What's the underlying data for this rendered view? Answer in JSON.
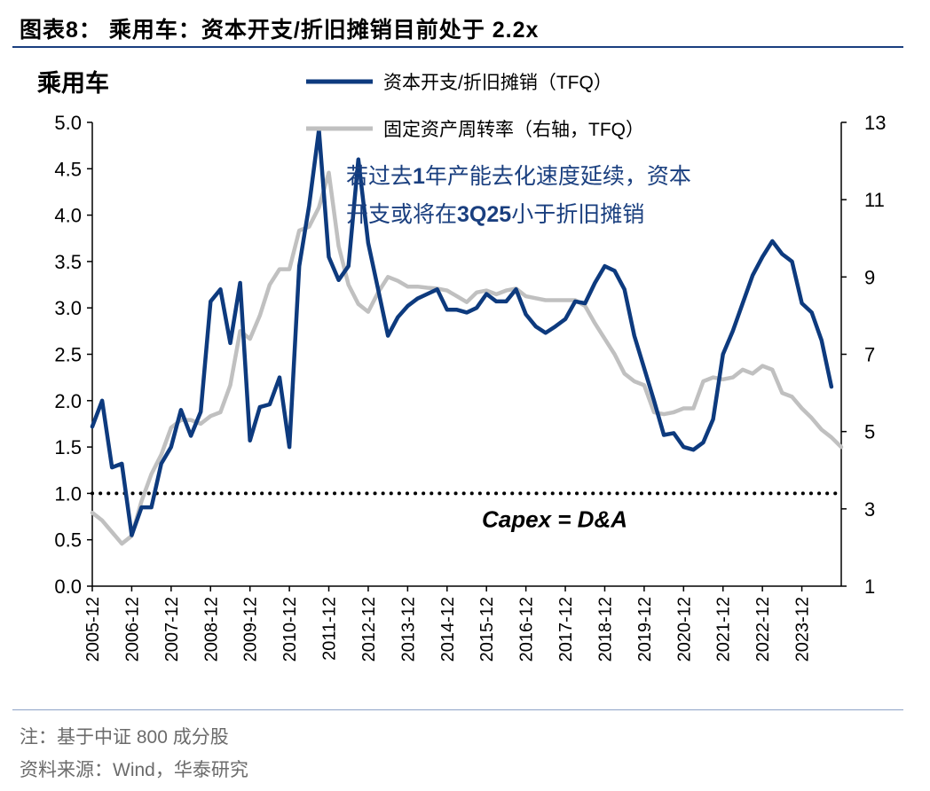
{
  "figure": {
    "title": "图表8： 乘用车：资本开支/折旧摊销目前处于 2.2x",
    "panel_label": "乘用车",
    "note": "注：基于中证 800 成分股",
    "source": "资料来源：Wind，华泰研究"
  },
  "chart_data": {
    "type": "line",
    "title": "乘用车",
    "x_tick_labels": [
      "2005-12",
      "2006-12",
      "2007-12",
      "2008-12",
      "2009-12",
      "2010-12",
      "2011-12",
      "2012-12",
      "2013-12",
      "2014-12",
      "2015-12",
      "2016-12",
      "2017-12",
      "2018-12",
      "2019-12",
      "2020-12",
      "2021-12",
      "2022-12",
      "2023-12"
    ],
    "x_range": [
      2005.75,
      2024.75
    ],
    "y_left": {
      "range": [
        0,
        5
      ],
      "ticks": [
        "0.0",
        "0.5",
        "1.0",
        "1.5",
        "2.0",
        "2.5",
        "3.0",
        "3.5",
        "4.0",
        "4.5",
        "5.0"
      ]
    },
    "y_right": {
      "range": [
        1,
        13
      ],
      "ticks": [
        "1",
        "3",
        "5",
        "7",
        "9",
        "11",
        "13"
      ]
    },
    "grid": false,
    "legend_position": "top",
    "series": [
      {
        "name": "资本开支/折旧摊销（TFQ）",
        "axis": "left",
        "color": "#0d3a7e",
        "points": [
          [
            2005.75,
            1.72
          ],
          [
            2006.0,
            2.0
          ],
          [
            2006.25,
            1.28
          ],
          [
            2006.5,
            1.32
          ],
          [
            2006.75,
            0.55
          ],
          [
            2007.0,
            0.85
          ],
          [
            2007.25,
            0.85
          ],
          [
            2007.5,
            1.32
          ],
          [
            2007.75,
            1.5
          ],
          [
            2008.0,
            1.9
          ],
          [
            2008.25,
            1.62
          ],
          [
            2008.5,
            1.88
          ],
          [
            2008.75,
            3.07
          ],
          [
            2009.0,
            3.2
          ],
          [
            2009.25,
            2.62
          ],
          [
            2009.5,
            3.27
          ],
          [
            2009.75,
            1.57
          ],
          [
            2010.0,
            1.93
          ],
          [
            2010.25,
            1.96
          ],
          [
            2010.5,
            2.25
          ],
          [
            2010.75,
            1.5
          ],
          [
            2011.0,
            3.45
          ],
          [
            2011.25,
            4.1
          ],
          [
            2011.5,
            4.92
          ],
          [
            2011.75,
            3.55
          ],
          [
            2012.0,
            3.3
          ],
          [
            2012.25,
            3.45
          ],
          [
            2012.5,
            4.6
          ],
          [
            2012.75,
            3.7
          ],
          [
            2013.0,
            3.2
          ],
          [
            2013.25,
            2.7
          ],
          [
            2013.5,
            2.9
          ],
          [
            2013.75,
            3.02
          ],
          [
            2014.0,
            3.1
          ],
          [
            2014.25,
            3.15
          ],
          [
            2014.5,
            3.2
          ],
          [
            2014.75,
            2.98
          ],
          [
            2015.0,
            2.98
          ],
          [
            2015.25,
            2.95
          ],
          [
            2015.5,
            3.0
          ],
          [
            2015.75,
            3.15
          ],
          [
            2016.0,
            3.07
          ],
          [
            2016.25,
            3.07
          ],
          [
            2016.5,
            3.2
          ],
          [
            2016.75,
            2.93
          ],
          [
            2017.0,
            2.8
          ],
          [
            2017.25,
            2.73
          ],
          [
            2017.5,
            2.8
          ],
          [
            2017.75,
            2.88
          ],
          [
            2018.0,
            3.07
          ],
          [
            2018.25,
            3.05
          ],
          [
            2018.5,
            3.27
          ],
          [
            2018.75,
            3.45
          ],
          [
            2019.0,
            3.4
          ],
          [
            2019.25,
            3.2
          ],
          [
            2019.5,
            2.7
          ],
          [
            2019.75,
            2.35
          ],
          [
            2020.0,
            2.0
          ],
          [
            2020.25,
            1.63
          ],
          [
            2020.5,
            1.65
          ],
          [
            2020.75,
            1.5
          ],
          [
            2021.0,
            1.47
          ],
          [
            2021.25,
            1.55
          ],
          [
            2021.5,
            1.8
          ],
          [
            2021.75,
            2.5
          ],
          [
            2022.0,
            2.75
          ],
          [
            2022.25,
            3.05
          ],
          [
            2022.5,
            3.35
          ],
          [
            2022.75,
            3.55
          ],
          [
            2023.0,
            3.72
          ],
          [
            2023.25,
            3.58
          ],
          [
            2023.5,
            3.5
          ],
          [
            2023.75,
            3.05
          ],
          [
            2024.0,
            2.95
          ],
          [
            2024.25,
            2.65
          ],
          [
            2024.5,
            2.15
          ]
        ]
      },
      {
        "name": "固定资产周转率（右轴，TFQ）",
        "axis": "right",
        "color": "#c0c0c0",
        "points": [
          [
            2005.75,
            2.9
          ],
          [
            2006.0,
            2.7
          ],
          [
            2006.25,
            2.4
          ],
          [
            2006.5,
            2.1
          ],
          [
            2006.75,
            2.3
          ],
          [
            2007.0,
            3.2
          ],
          [
            2007.25,
            3.9
          ],
          [
            2007.5,
            4.4
          ],
          [
            2007.75,
            5.1
          ],
          [
            2008.0,
            5.3
          ],
          [
            2008.25,
            5.3
          ],
          [
            2008.5,
            5.2
          ],
          [
            2008.75,
            5.4
          ],
          [
            2009.0,
            5.5
          ],
          [
            2009.25,
            6.2
          ],
          [
            2009.5,
            7.6
          ],
          [
            2009.75,
            7.4
          ],
          [
            2010.0,
            8.0
          ],
          [
            2010.25,
            8.8
          ],
          [
            2010.5,
            9.2
          ],
          [
            2010.75,
            9.2
          ],
          [
            2011.0,
            10.2
          ],
          [
            2011.25,
            10.3
          ],
          [
            2011.5,
            10.8
          ],
          [
            2011.75,
            11.7
          ],
          [
            2012.0,
            9.8
          ],
          [
            2012.25,
            8.8
          ],
          [
            2012.5,
            8.3
          ],
          [
            2012.75,
            8.1
          ],
          [
            2013.0,
            8.6
          ],
          [
            2013.25,
            9.0
          ],
          [
            2013.5,
            8.9
          ],
          [
            2013.75,
            8.75
          ],
          [
            2014.0,
            8.75
          ],
          [
            2014.25,
            8.72
          ],
          [
            2014.5,
            8.7
          ],
          [
            2014.75,
            8.65
          ],
          [
            2015.0,
            8.5
          ],
          [
            2015.25,
            8.35
          ],
          [
            2015.5,
            8.6
          ],
          [
            2015.75,
            8.65
          ],
          [
            2016.0,
            8.55
          ],
          [
            2016.25,
            8.65
          ],
          [
            2016.5,
            8.7
          ],
          [
            2016.75,
            8.5
          ],
          [
            2017.0,
            8.45
          ],
          [
            2017.25,
            8.4
          ],
          [
            2017.5,
            8.4
          ],
          [
            2017.75,
            8.4
          ],
          [
            2018.0,
            8.4
          ],
          [
            2018.25,
            8.25
          ],
          [
            2018.5,
            7.8
          ],
          [
            2018.75,
            7.4
          ],
          [
            2019.0,
            7.0
          ],
          [
            2019.25,
            6.5
          ],
          [
            2019.5,
            6.3
          ],
          [
            2019.75,
            6.2
          ],
          [
            2020.0,
            5.5
          ],
          [
            2020.25,
            5.45
          ],
          [
            2020.5,
            5.5
          ],
          [
            2020.75,
            5.6
          ],
          [
            2021.0,
            5.6
          ],
          [
            2021.25,
            6.3
          ],
          [
            2021.5,
            6.4
          ],
          [
            2021.75,
            6.35
          ],
          [
            2022.0,
            6.4
          ],
          [
            2022.25,
            6.6
          ],
          [
            2022.5,
            6.5
          ],
          [
            2022.75,
            6.7
          ],
          [
            2023.0,
            6.6
          ],
          [
            2023.25,
            6.0
          ],
          [
            2023.5,
            5.9
          ],
          [
            2023.75,
            5.6
          ],
          [
            2024.0,
            5.35
          ],
          [
            2024.25,
            5.05
          ],
          [
            2024.5,
            4.85
          ],
          [
            2024.75,
            4.6
          ]
        ]
      }
    ],
    "reference_line": {
      "axis": "left",
      "y": 1.0,
      "style": "dotted",
      "label": "Capex = D&A"
    },
    "annotation": {
      "line1": [
        "若过去",
        "1",
        "年产能去化速度延续，资本"
      ],
      "line2": [
        "开支或将在",
        "3Q25",
        "小于折旧摊销"
      ]
    }
  }
}
